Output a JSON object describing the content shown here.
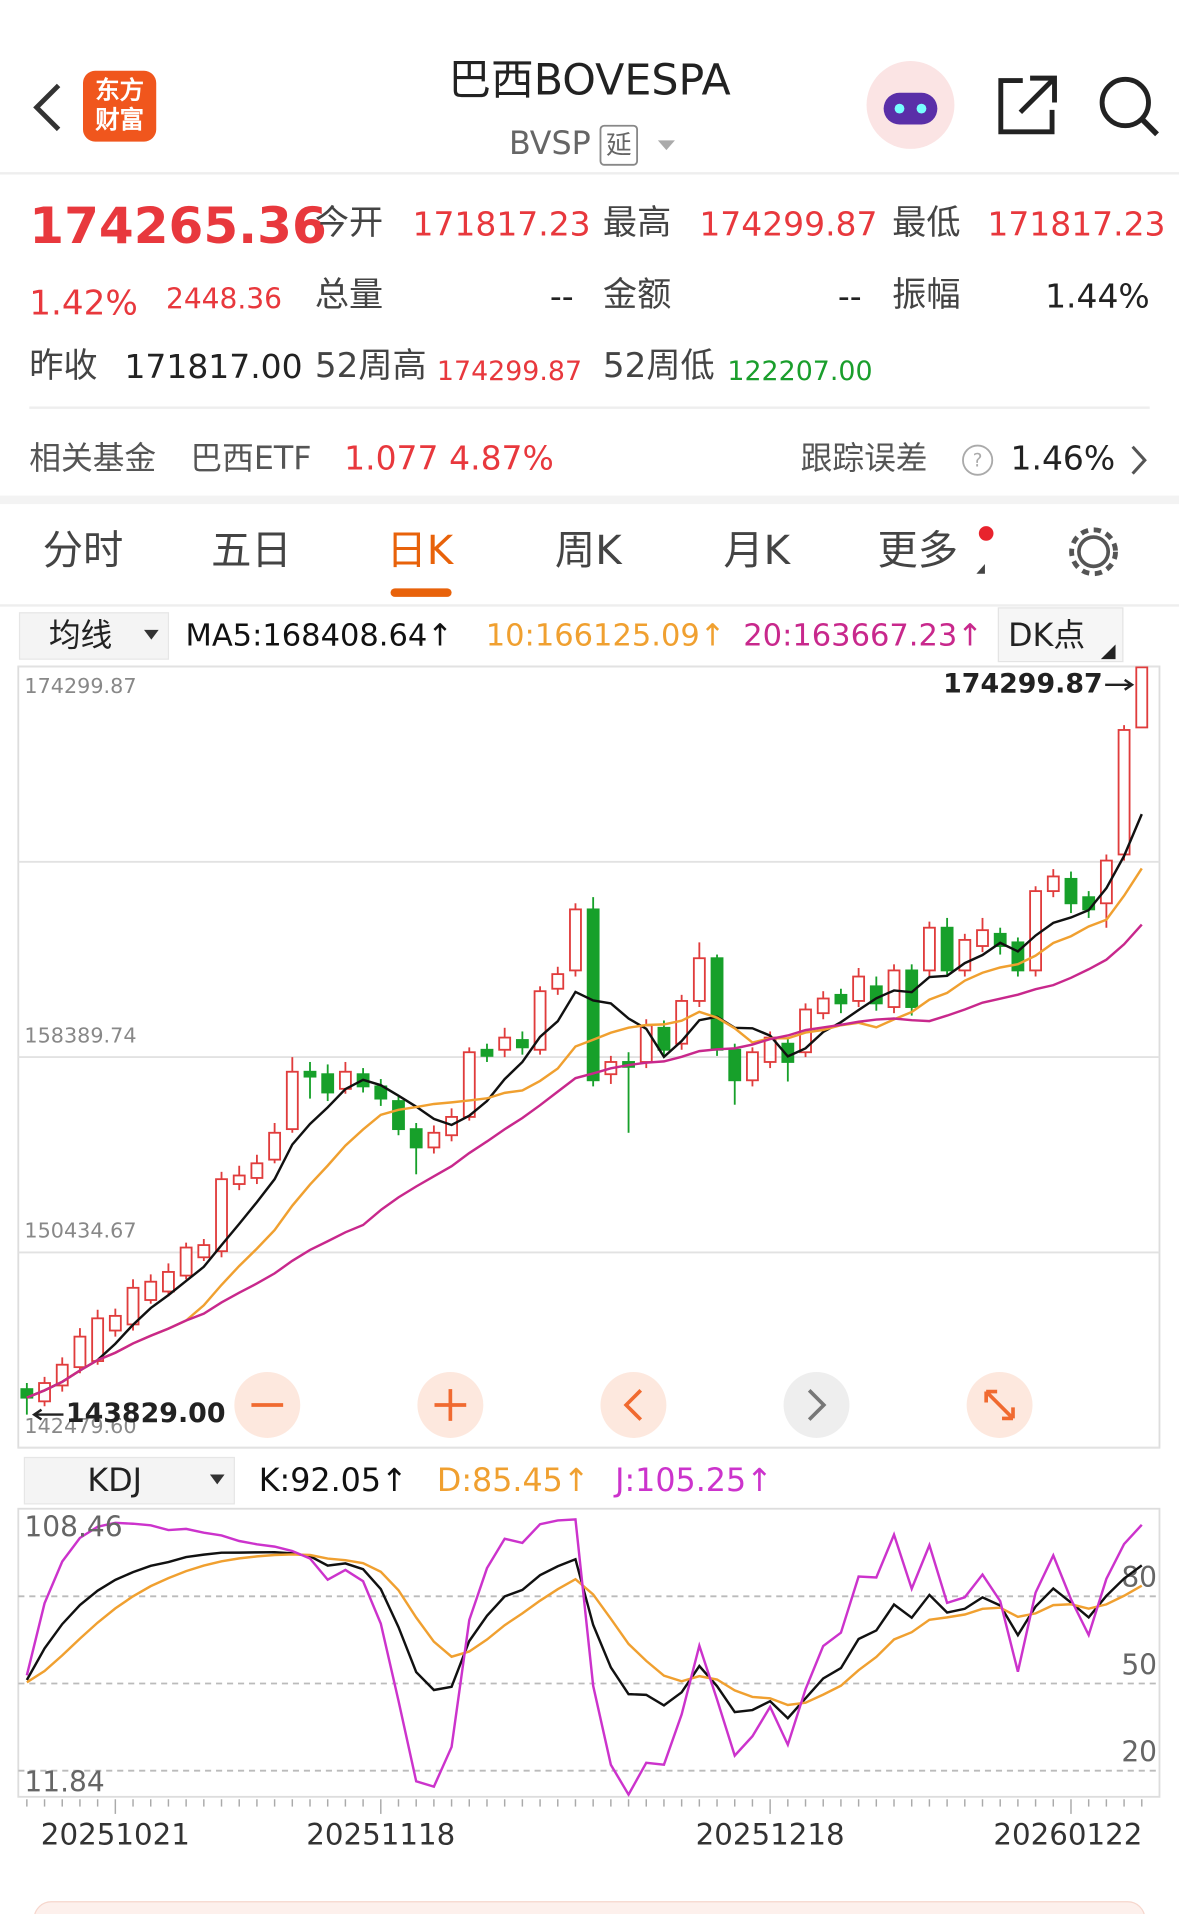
{
  "header": {
    "logo": [
      "东方",
      "财富"
    ],
    "title": "巴西BOVESPA",
    "code": "BVSP",
    "delay_tag": "延"
  },
  "quote": {
    "price": "174265.36",
    "change_pct": "1.42%",
    "change": "2448.36",
    "stats": [
      {
        "label": "今开",
        "value": "171817.23"
      },
      {
        "label": "最高",
        "value": "174299.87"
      },
      {
        "label": "最低",
        "value": "171817.23"
      },
      {
        "label": "总量",
        "value": "--"
      },
      {
        "label": "金额",
        "value": "--"
      },
      {
        "label": "振幅",
        "value": "1.44%"
      },
      {
        "label": "昨收",
        "value": "171817.00"
      },
      {
        "label": "52周高",
        "value": "174299.87"
      },
      {
        "label": "52周低",
        "value": "122207.00"
      }
    ]
  },
  "fund": {
    "label": "相关基金",
    "name": "巴西ETF",
    "price": "1.077",
    "change_pct": "4.87%",
    "tracking_label": "跟踪误差",
    "tracking_value": "1.46%"
  },
  "tabs": [
    "分时",
    "五日",
    "日K",
    "周K",
    "月K",
    "更多"
  ],
  "indicator_bar": {
    "selector": "均线",
    "ma5": "MA5:168408.64↑",
    "ma10": "10:166125.09↑",
    "ma20": "20:163667.23↑",
    "dk": "DK点"
  },
  "chart_data": {
    "type": "candlestick",
    "categories": [
      null,
      null,
      null,
      null,
      null,
      "20251021",
      null,
      null,
      null,
      null,
      null,
      null,
      null,
      null,
      null,
      null,
      null,
      null,
      null,
      null,
      "20251118",
      null,
      null,
      null,
      null,
      null,
      null,
      null,
      null,
      null,
      null,
      null,
      null,
      null,
      null,
      null,
      null,
      null,
      null,
      null,
      null,
      null,
      "20251218",
      null,
      null,
      null,
      null,
      null,
      null,
      null,
      null,
      null,
      null,
      null,
      null,
      null,
      null,
      null,
      null,
      "20260122",
      null,
      null,
      null,
      null
    ],
    "open": [
      144866,
      144368,
      145015,
      145761,
      146009,
      147252,
      147501,
      148495,
      148843,
      149490,
      150235,
      150484,
      153219,
      153467,
      154213,
      155456,
      157793,
      157693,
      157097,
      157693,
      157196,
      156600,
      155456,
      154710,
      155207,
      155953,
      158688,
      158688,
      159086,
      158688,
      161174,
      161920,
      164406,
      157693,
      158191,
      158191,
      159583,
      158936,
      160677,
      162417,
      158688,
      157445,
      158191,
      158936,
      158588,
      160179,
      160925,
      160677,
      161273,
      160428,
      161920,
      161920,
      163660,
      161920,
      162914,
      163411,
      163063,
      161920,
      165151,
      165649,
      164903,
      164654,
      166643,
      171817.23
    ],
    "high": [
      145114,
      145363,
      146158,
      147352,
      148097,
      148147,
      149340,
      149539,
      149987,
      150832,
      150981,
      153716,
      153964,
      154412,
      155705,
      158389,
      158191,
      158091,
      158191,
      157942,
      157495,
      156798,
      155705,
      155605,
      156301,
      158787,
      158936,
      159583,
      159434,
      161273,
      162069,
      164654,
      164903,
      158439,
      158588,
      159931,
      159881,
      160925,
      163063,
      162566,
      158936,
      158787,
      159434,
      159185,
      160577,
      161074,
      161174,
      162019,
      161671,
      162168,
      162168,
      163908,
      164058,
      163411,
      164058,
      163660,
      163262,
      165350,
      166046,
      165947,
      165151,
      166643,
      171913,
      174299.87
    ],
    "low": [
      143829,
      144170,
      144766,
      145512,
      145860,
      147004,
      147252,
      148346,
      148644,
      149340,
      150086,
      150235,
      152970,
      153219,
      154064,
      155307,
      156699,
      156600,
      156898,
      156948,
      156401,
      155207,
      153616,
      154462,
      154959,
      155804,
      158191,
      158389,
      158489,
      158489,
      160925,
      161671,
      157196,
      157296,
      155307,
      157942,
      158389,
      158688,
      160428,
      158439,
      156450,
      157196,
      157942,
      157395,
      158389,
      159931,
      160179,
      160428,
      160279,
      160179,
      160080,
      161671,
      161671,
      161671,
      162665,
      162566,
      161671,
      161671,
      164903,
      164256,
      164058,
      163660,
      166394,
      171817.23
    ],
    "close": [
      144518,
      145114,
      145860,
      147004,
      147749,
      147849,
      148992,
      149241,
      149639,
      150633,
      150733,
      153417,
      153567,
      154064,
      155307,
      157793,
      157594,
      156948,
      157793,
      157196,
      156699,
      155456,
      154710,
      155307,
      155953,
      158588,
      158439,
      159185,
      158787,
      161074,
      161770,
      164406,
      157445,
      158191,
      157992,
      159682,
      158688,
      160677,
      162417,
      158688,
      157445,
      158588,
      159185,
      158191,
      160329,
      160776,
      160577,
      161671,
      160577,
      161920,
      160428,
      163660,
      161920,
      163163,
      163560,
      162914,
      161920,
      165151,
      165748,
      164654,
      164406,
      166394,
      171714,
      174265.36
    ],
    "up_color": "#e03c3c",
    "down_color": "#17a02a",
    "ma_colors": [
      "#111111",
      "#f0a030",
      "#c8288c"
    ],
    "ylim": [
      142479.6,
      174299.87
    ],
    "yticks": [
      {
        "value": 142479.6,
        "label": "142479.60"
      },
      150434.67,
      158389.74,
      {
        "value": 166344.8,
        "label": null
      },
      174299.87
    ],
    "max_label": "174299.87",
    "min_label": "143829.00",
    "grid": true
  },
  "kdj": {
    "selector": "KDJ",
    "k": "K:92.05↑",
    "d": "D:85.45↑",
    "j": "J:105.25↑",
    "colors": [
      "#111111",
      "#f0a030",
      "#cc33cc"
    ],
    "ylim": [
      11.84,
      108.46
    ],
    "yticks": [
      80,
      50,
      20
    ]
  }
}
